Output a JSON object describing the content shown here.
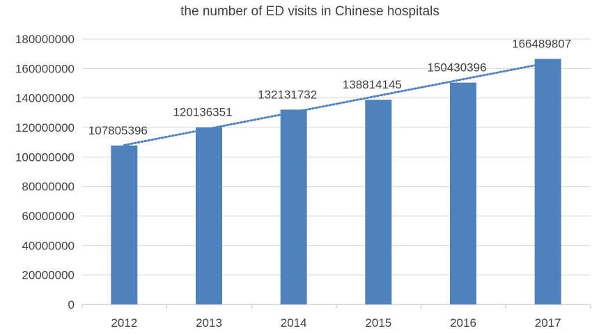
{
  "chart_data": {
    "type": "bar",
    "title": "the number of ED visits in Chinese hospitals",
    "xlabel": "",
    "ylabel": "",
    "categories": [
      "2012",
      "2013",
      "2014",
      "2015",
      "2016",
      "2017"
    ],
    "series": [
      {
        "values": [
          107805396,
          120136351,
          132131732,
          138814145,
          150430396,
          166489807
        ],
        "data_labels": [
          "107805396",
          "120136351",
          "132131732",
          "138814145",
          "150430396",
          "166489807"
        ],
        "color": "#4F81BD"
      }
    ],
    "trendline": {
      "type": "linear",
      "style": "dotted",
      "color": "#4F81BD"
    },
    "ylim": [
      0,
      180000000
    ],
    "yticks": [
      0,
      20000000,
      40000000,
      60000000,
      80000000,
      100000000,
      120000000,
      140000000,
      160000000,
      180000000
    ],
    "ytick_labels": [
      "0",
      "20000000",
      "40000000",
      "60000000",
      "80000000",
      "100000000",
      "120000000",
      "140000000",
      "160000000",
      "180000000"
    ],
    "gridlines": true,
    "legend": "none"
  }
}
